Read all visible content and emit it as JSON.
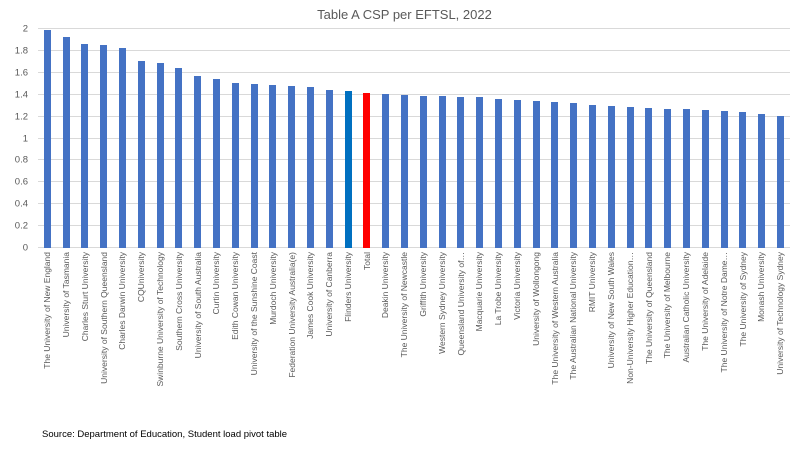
{
  "title": "Table A CSP per EFTSL, 2022",
  "source": "Source: Department of Education, Student load pivot table",
  "colors": {
    "bar_default": "#4472C4",
    "bar_total": "#FF0000",
    "bar_flinders_highlight": "#0070C0",
    "gridline": "#D9D9D9",
    "axis_text": "#595959",
    "title_text": "#595959",
    "source_text": "#000000"
  },
  "chart_data": {
    "type": "bar",
    "title": "Table A CSP per EFTSL, 2022",
    "xlabel": "",
    "ylabel": "",
    "ylim": [
      0,
      2
    ],
    "ytick_step": 0.2,
    "ytick_labels": [
      "0",
      "0.2",
      "0.4",
      "0.6",
      "0.8",
      "1",
      "1.2",
      "1.4",
      "1.6",
      "1.8",
      "2"
    ],
    "grid": true,
    "legend": "none",
    "categories": [
      "The University of New England",
      "University of Tasmania",
      "Charles Sturt University",
      "University of Southern Queensland",
      "Charles Darwin University",
      "CQUniversity",
      "Swinburne University of Technology",
      "Southern Cross University",
      "University of South Australia",
      "Curtin University",
      "Edith Cowan University",
      "University of the Sunshine Coast",
      "Murdoch University",
      "Federation University Australia(e)",
      "James Cook University",
      "University of Canberra",
      "Flinders University",
      "Total",
      "Deakin University",
      "The University of Newcastle",
      "Griffith University",
      "Western Sydney University",
      "Queensland University of…",
      "Macquarie University",
      "La Trobe University",
      "Victoria University",
      "University of Wollongong",
      "The University of Western Australia",
      "The Australian National University",
      "RMIT University",
      "University of New South Wales",
      "Non-University Higher Education…",
      "The University of Queensland",
      "The University of Melbourne",
      "Australian Catholic University",
      "The University of Adelaide",
      "The University of Notre Dame…",
      "The University of Sydney",
      "Monash University",
      "University of Technology Sydney"
    ],
    "values": [
      1.99,
      1.93,
      1.86,
      1.85,
      1.83,
      1.71,
      1.69,
      1.64,
      1.57,
      1.54,
      1.51,
      1.5,
      1.49,
      1.48,
      1.47,
      1.44,
      1.43,
      1.42,
      1.41,
      1.4,
      1.39,
      1.39,
      1.38,
      1.38,
      1.36,
      1.35,
      1.34,
      1.33,
      1.32,
      1.31,
      1.3,
      1.29,
      1.28,
      1.27,
      1.27,
      1.26,
      1.25,
      1.24,
      1.22,
      1.21
    ],
    "highlights": [
      {
        "category": "Total",
        "color": "#FF0000"
      },
      {
        "category": "Flinders University",
        "color": "#0070C0"
      }
    ]
  }
}
